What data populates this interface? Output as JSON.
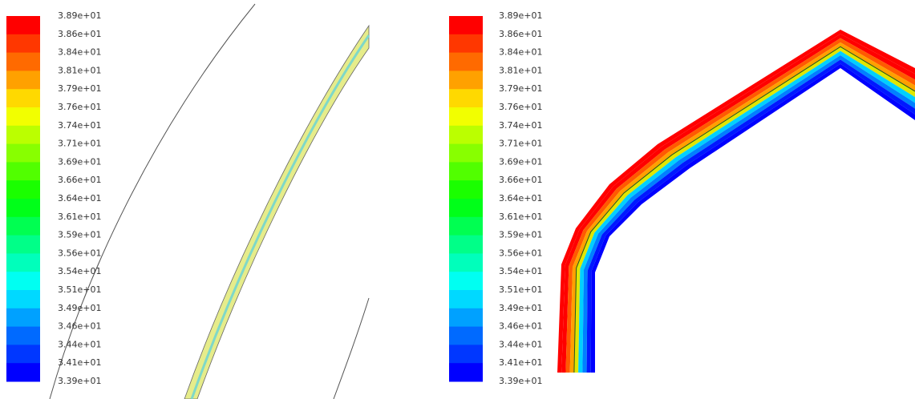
{
  "panels": [
    {
      "legend": {
        "labels": [
          "3.89e+01",
          "3.86e+01",
          "3.84e+01",
          "3.81e+01",
          "3.79e+01",
          "3.76e+01",
          "3.74e+01",
          "3.71e+01",
          "3.69e+01",
          "3.66e+01",
          "3.64e+01",
          "3.61e+01",
          "3.59e+01",
          "3.56e+01",
          "3.54e+01",
          "3.51e+01",
          "3.49e+01",
          "3.46e+01",
          "3.44e+01",
          "3.41e+01",
          "3.39e+01"
        ]
      }
    },
    {
      "legend": {
        "labels": [
          "3.89e+01",
          "3.86e+01",
          "3.84e+01",
          "3.81e+01",
          "3.79e+01",
          "3.76e+01",
          "3.74e+01",
          "3.71e+01",
          "3.69e+01",
          "3.66e+01",
          "3.64e+01",
          "3.61e+01",
          "3.59e+01",
          "3.56e+01",
          "3.54e+01",
          "3.51e+01",
          "3.49e+01",
          "3.46e+01",
          "3.44e+01",
          "3.41e+01",
          "3.39e+01"
        ]
      }
    }
  ]
}
